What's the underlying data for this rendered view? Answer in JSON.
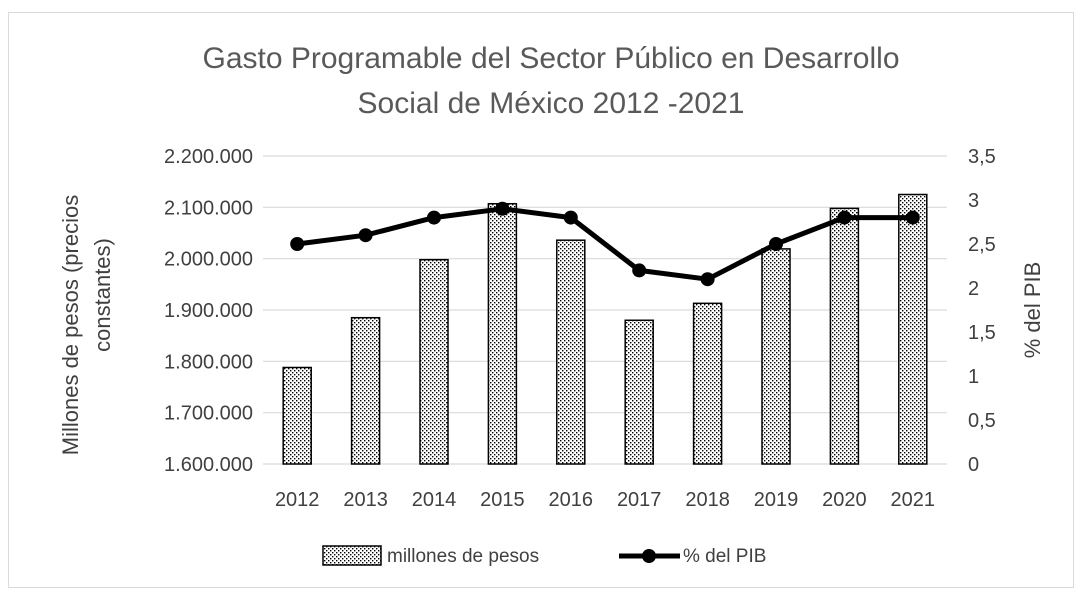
{
  "chart_data": {
    "type": "bar",
    "title_line1": "Gasto Programable del Sector Público en Desarrollo",
    "title_line2": "Social de México 2012 -2021",
    "categories": [
      "2012",
      "2013",
      "2014",
      "2015",
      "2016",
      "2017",
      "2018",
      "2019",
      "2020",
      "2021"
    ],
    "series": [
      {
        "name": "millones de pesos",
        "type": "bar",
        "axis": "left",
        "values": [
          1788000,
          1885000,
          1998000,
          2107000,
          2036000,
          1880000,
          1913000,
          2019000,
          2098000,
          2125000
        ]
      },
      {
        "name": "% del PIB",
        "type": "line",
        "axis": "right",
        "values": [
          2.5,
          2.6,
          2.8,
          2.9,
          2.8,
          2.2,
          2.1,
          2.5,
          2.8,
          2.8
        ]
      }
    ],
    "ylabel": "Millones de pesos (precios constantes)",
    "ylabel_line1": "Millones de pesos (precios",
    "ylabel_line2": "constantes)",
    "y2label": "% del PIB",
    "ylim": [
      1600000,
      2200000
    ],
    "y2lim": [
      0,
      3.5
    ],
    "y_ticks": [
      "1.600.000",
      "1.700.000",
      "1.800.000",
      "1.900.000",
      "2.000.000",
      "2.100.000",
      "2.200.000"
    ],
    "y2_ticks": [
      "0",
      "0,5",
      "1",
      "1,5",
      "2",
      "2,5",
      "3",
      "3,5"
    ],
    "grid": true,
    "legend_position": "bottom",
    "colors": {
      "bar_edge": "#000000",
      "line": "#000000",
      "grid": "#d9d9d9",
      "text": "#404040"
    }
  }
}
